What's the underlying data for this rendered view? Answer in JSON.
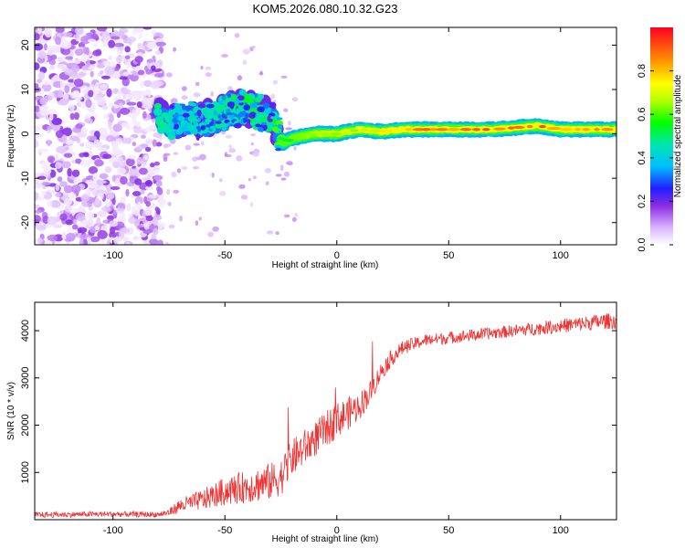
{
  "figure_title": "KOM5.2026.080.10.32.G23",
  "chart_data": [
    {
      "type": "heatmap",
      "title": "KOM5.2026.080.10.32.G23",
      "xlabel": "Height of straight line (km)",
      "ylabel": "Frequency (Hz)",
      "xlim": [
        -135,
        125
      ],
      "ylim": [
        -25,
        24
      ],
      "xticks": [
        -100,
        -50,
        0,
        50,
        100
      ],
      "yticks": [
        20,
        10,
        0,
        -10,
        -20
      ],
      "colorbar": {
        "label": "Normalized spectral amplitude",
        "range": [
          0,
          1
        ],
        "ticks": [
          0.0,
          0.2,
          0.4,
          0.6,
          0.8
        ]
      },
      "ridge": {
        "description_points_x": [
          -80,
          -75,
          -70,
          -60,
          -50,
          -40,
          -30,
          -27,
          -24,
          -20,
          -10,
          0,
          10,
          20,
          30,
          50,
          70,
          90,
          100,
          110,
          125
        ],
        "description_points_freq": [
          4,
          2,
          3,
          3,
          5,
          6,
          4,
          1,
          -2,
          -1,
          0,
          0,
          1,
          0.5,
          1,
          1,
          1,
          1.8,
          1,
          1,
          1
        ],
        "peak_amplitude": [
          0.5,
          0.45,
          0.4,
          0.45,
          0.5,
          0.55,
          0.5,
          0.6,
          0.6,
          0.62,
          0.65,
          0.7,
          0.72,
          0.75,
          0.9,
          0.95,
          0.95,
          0.95,
          0.9,
          0.95,
          0.95
        ]
      },
      "noise_region": {
        "x_from": -135,
        "x_to": -78,
        "amplitude_range": [
          0.02,
          0.2
        ]
      }
    },
    {
      "type": "line",
      "xlabel": "Height of straight line (km)",
      "ylabel": "SNR (10 * v/v)",
      "xlim": [
        -135,
        125
      ],
      "ylim": [
        0,
        4600
      ],
      "xticks": [
        -100,
        -50,
        0,
        50,
        100
      ],
      "yticks": [
        1000,
        2000,
        3000,
        4000
      ],
      "line_color": "#ee3333",
      "series": [
        {
          "name": "SNR",
          "x": [
            -135,
            -120,
            -100,
            -90,
            -80,
            -75,
            -70,
            -60,
            -50,
            -40,
            -30,
            -25,
            -20,
            -10,
            0,
            5,
            10,
            15,
            20,
            25,
            30,
            40,
            50,
            60,
            70,
            80,
            90,
            100,
            110,
            120,
            125
          ],
          "values": [
            100,
            110,
            120,
            110,
            110,
            150,
            300,
            420,
            600,
            700,
            800,
            900,
            1300,
            1700,
            2100,
            2250,
            2400,
            2700,
            3150,
            3450,
            3650,
            3800,
            3850,
            3900,
            3950,
            4000,
            4050,
            4100,
            4150,
            4200,
            4200
          ],
          "noise_amplitude": [
            60,
            60,
            60,
            60,
            60,
            80,
            150,
            220,
            300,
            350,
            400,
            400,
            400,
            380,
            380,
            350,
            300,
            250,
            200,
            180,
            150,
            130,
            130,
            130,
            130,
            130,
            140,
            150,
            160,
            170,
            170
          ]
        }
      ]
    }
  ]
}
